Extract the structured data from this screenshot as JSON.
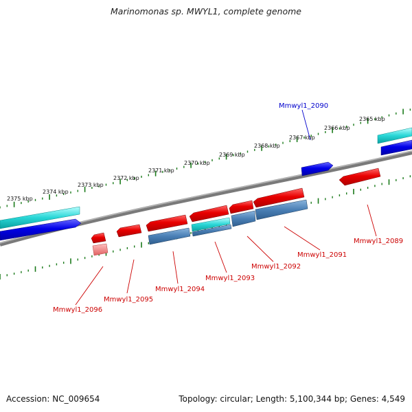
{
  "title": "Marinomonas sp. MWYL1, complete genome",
  "footer": {
    "accession": "Accession: NC_009654",
    "summary": "Topology: circular; Length: 5,100,344 bp; Genes: 4,549"
  },
  "ruler_labels": [
    "2375 kbp",
    "2374 kbp",
    "2373 kbp",
    "2372 kbp",
    "2371 kbp",
    "2370 kbp",
    "2369 kbp",
    "2368 kbp",
    "2367 kbp",
    "2366 kbp",
    "2365 kbp"
  ],
  "gene_labels": [
    {
      "text": "Mmwyl1_2090",
      "color": "#0000cc"
    },
    {
      "text": "Mmwyl1_2089",
      "color": "#cc0000"
    },
    {
      "text": "Mmwyl1_2091",
      "color": "#cc0000"
    },
    {
      "text": "Mmwyl1_2092",
      "color": "#cc0000"
    },
    {
      "text": "Mmwyl1_2093",
      "color": "#cc0000"
    },
    {
      "text": "Mmwyl1_2094",
      "color": "#cc0000"
    },
    {
      "text": "Mmwyl1_2095",
      "color": "#cc0000"
    },
    {
      "text": "Mmwyl1_2096",
      "color": "#cc0000"
    }
  ],
  "colors": {
    "forward_cds": "#0000dd",
    "reverse_cds": "#dd0000",
    "rna": "#00c8c8",
    "gene_feature": "#4a7fb5",
    "backbone": "#7a7a7a",
    "ruler": "#1a7a1a"
  }
}
